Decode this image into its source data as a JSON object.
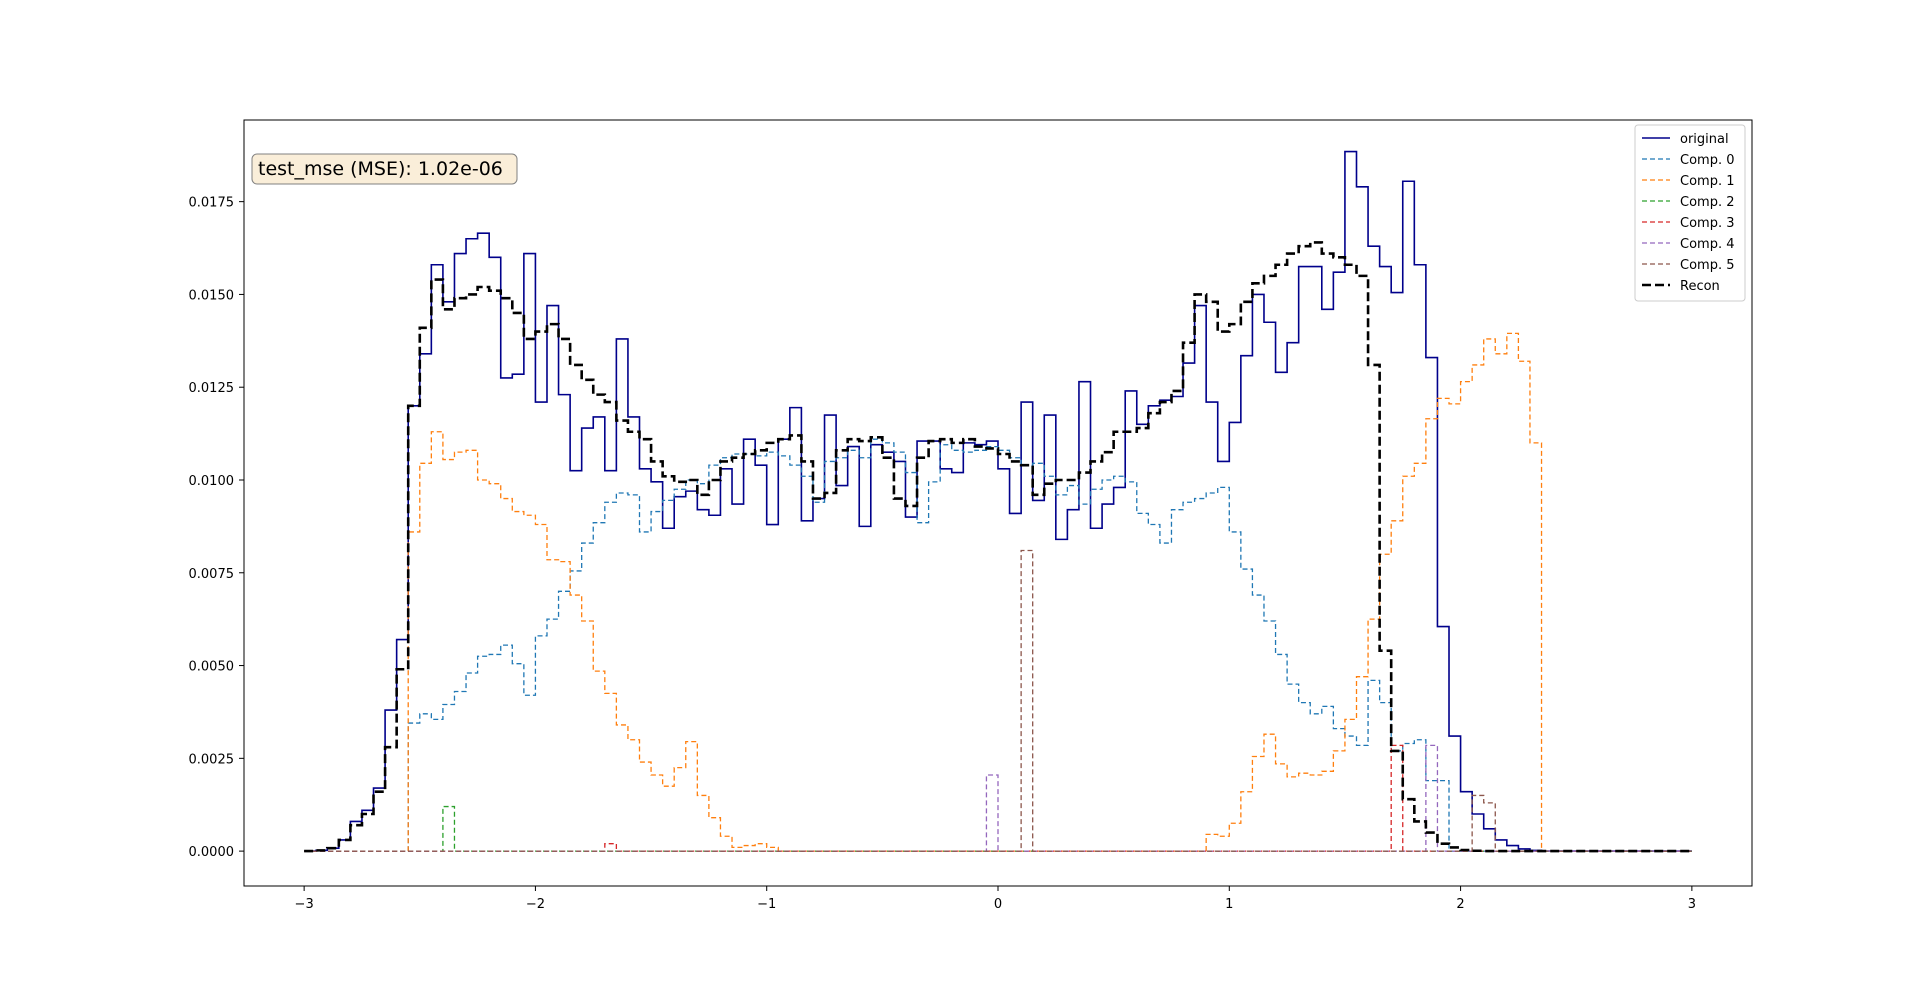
{
  "chart_data": {
    "type": "line",
    "annotation": "test_mse (MSE): 1.02e-06",
    "xlim": [
      -3.26,
      3.26
    ],
    "ylim": [
      -0.00094,
      0.0197
    ],
    "xticks": [
      -3,
      -2,
      -1,
      0,
      1,
      2,
      3
    ],
    "xtick_labels": [
      "−3",
      "−2",
      "−1",
      "0",
      "1",
      "2",
      "3"
    ],
    "yticks": [
      0,
      0.0025,
      0.005,
      0.0075,
      0.01,
      0.0125,
      0.015,
      0.0175
    ],
    "ytick_labels": [
      "0.0000",
      "0.0025",
      "0.0050",
      "0.0075",
      "0.0100",
      "0.0125",
      "0.0150",
      "0.0175"
    ],
    "grid": false,
    "legend_position": "top-right",
    "bin_edges": {
      "start": -3.0,
      "step": 0.05,
      "count": 121
    },
    "series": [
      {
        "name": "original",
        "color": "#00008b",
        "style": "solid",
        "values": [
          0.0,
          2e-05,
          8e-05,
          0.0003,
          0.0008,
          0.0011,
          0.0017,
          0.0038,
          0.0057,
          0.012,
          0.0134,
          0.0158,
          0.0148,
          0.0161,
          0.0165,
          0.01665,
          0.016,
          0.01275,
          0.01285,
          0.0161,
          0.0121,
          0.0147,
          0.0123,
          0.01025,
          0.0114,
          0.0117,
          0.01025,
          0.0138,
          0.0117,
          0.0103,
          0.00995,
          0.0087,
          0.00955,
          0.0097,
          0.0092,
          0.00905,
          0.0103,
          0.00935,
          0.0111,
          0.0104,
          0.0088,
          0.0111,
          0.01195,
          0.0089,
          0.0095,
          0.01175,
          0.00985,
          0.0109,
          0.00875,
          0.01095,
          0.01075,
          0.0105,
          0.009,
          0.01105,
          0.01105,
          0.0103,
          0.0102,
          0.011,
          0.01095,
          0.01105,
          0.0103,
          0.0091,
          0.0121,
          0.00945,
          0.01175,
          0.0084,
          0.0092,
          0.01265,
          0.0087,
          0.00935,
          0.0098,
          0.0124,
          0.0115,
          0.012,
          0.01215,
          0.01225,
          0.01315,
          0.0147,
          0.0121,
          0.0105,
          0.01155,
          0.01335,
          0.015,
          0.01425,
          0.0129,
          0.0137,
          0.01575,
          0.01575,
          0.0146,
          0.0156,
          0.01885,
          0.0179,
          0.0163,
          0.01575,
          0.01505,
          0.01805,
          0.0158,
          0.0133,
          0.00605,
          0.0031,
          0.0016,
          0.001,
          0.0006,
          0.0003,
          0.00015,
          6e-05,
          2e-05,
          0.0,
          0.0,
          0.0,
          0.0,
          0.0,
          0.0,
          0.0,
          0.0,
          0.0,
          0.0,
          0.0,
          0.0,
          0.0
        ]
      },
      {
        "name": "Comp. 0",
        "color": "#1f77b4",
        "style": "dashed",
        "values": [
          0,
          0,
          0,
          0,
          0,
          0,
          0,
          0,
          0,
          0.00345,
          0.0037,
          0.00355,
          0.00395,
          0.0043,
          0.0048,
          0.00525,
          0.0053,
          0.00555,
          0.00505,
          0.0042,
          0.0058,
          0.00625,
          0.007,
          0.00755,
          0.0083,
          0.00885,
          0.0094,
          0.00965,
          0.0096,
          0.0086,
          0.00915,
          0.00945,
          0.00975,
          0.01,
          0.0099,
          0.0104,
          0.0106,
          0.0107,
          0.0107,
          0.01065,
          0.01075,
          0.01065,
          0.0104,
          0.0101,
          0.0094,
          0.0105,
          0.0106,
          0.0108,
          0.0106,
          0.0111,
          0.011,
          0.01075,
          0.0102,
          0.00885,
          0.00995,
          0.01095,
          0.0108,
          0.01075,
          0.0108,
          0.0109,
          0.0108,
          0.0106,
          0.0104,
          0.01045,
          0.0101,
          0.0096,
          0.00985,
          0.00935,
          0.00975,
          0.01,
          0.0101,
          0.00995,
          0.0091,
          0.0088,
          0.0083,
          0.0092,
          0.0094,
          0.0095,
          0.00965,
          0.0098,
          0.0086,
          0.0076,
          0.0069,
          0.0062,
          0.0053,
          0.0045,
          0.004,
          0.0037,
          0.0039,
          0.0033,
          0.0031,
          0.00285,
          0.0046,
          0.004,
          0.0027,
          0.0029,
          0.003,
          0.0019,
          0.0019,
          0,
          0,
          0,
          0,
          0,
          0,
          0,
          0,
          0,
          0,
          0,
          0,
          0,
          0,
          0,
          0,
          0,
          0,
          0,
          0,
          0
        ]
      },
      {
        "name": "Comp. 1",
        "color": "#ff7f0e",
        "style": "dashed",
        "values": [
          0,
          0,
          0,
          0,
          0,
          0,
          0,
          0,
          0,
          0.0086,
          0.01045,
          0.0113,
          0.01055,
          0.01075,
          0.0108,
          0.01,
          0.0099,
          0.0095,
          0.00915,
          0.00905,
          0.0088,
          0.00785,
          0.0078,
          0.0069,
          0.0062,
          0.00485,
          0.00425,
          0.0034,
          0.003,
          0.0024,
          0.00205,
          0.00175,
          0.00225,
          0.00295,
          0.0015,
          0.0009,
          0.0004,
          0.0001,
          0.00015,
          0.0002,
          0.0001,
          0,
          0,
          0,
          0,
          0,
          0,
          0,
          0,
          0,
          0,
          0,
          0,
          0,
          0,
          0,
          0,
          0,
          0,
          0,
          0,
          0,
          0,
          0,
          0,
          0,
          0,
          0,
          0,
          0,
          0,
          0,
          0,
          0,
          0,
          0,
          0,
          0,
          0.00045,
          0.0004,
          0.00075,
          0.0016,
          0.00255,
          0.00315,
          0.00235,
          0.002,
          0.0021,
          0.00205,
          0.00215,
          0.0027,
          0.00355,
          0.0047,
          0.00625,
          0.008,
          0.0089,
          0.0101,
          0.01045,
          0.01165,
          0.0122,
          0.01205,
          0.01265,
          0.0131,
          0.0138,
          0.0134,
          0.01395,
          0.0132,
          0.011,
          0,
          0,
          0,
          0,
          0,
          0,
          0,
          0,
          0,
          0,
          0,
          0,
          0,
          0,
          0,
          0,
          0,
          0,
          0,
          0
        ]
      },
      {
        "name": "Comp. 2",
        "color": "#2ca02c",
        "style": "dashed",
        "values": [
          0,
          0,
          0,
          0,
          0,
          0,
          0,
          0,
          0,
          0,
          0,
          0,
          0.0012,
          0,
          0,
          0,
          0,
          0,
          0,
          0,
          0,
          0,
          0,
          0,
          0,
          0,
          0,
          0,
          0,
          0,
          0,
          0,
          0,
          0,
          0,
          0,
          0,
          0,
          0,
          0,
          0,
          0,
          0,
          0,
          0,
          0,
          0,
          0,
          0,
          0,
          0,
          0,
          0,
          0,
          0,
          0,
          0,
          0,
          0,
          0,
          0,
          0,
          0,
          0,
          0,
          0,
          0,
          0,
          0,
          0,
          0,
          0,
          0,
          0,
          0,
          0,
          0,
          0,
          0,
          0,
          0,
          0,
          0,
          0,
          0,
          0,
          0,
          0,
          0,
          0,
          0,
          0,
          0,
          0,
          0,
          0,
          0,
          0,
          0,
          0,
          0,
          0,
          0,
          0,
          0,
          0,
          0,
          0,
          0,
          0,
          0,
          0,
          0,
          0,
          0,
          0,
          0,
          0,
          0,
          0
        ]
      },
      {
        "name": "Comp. 3",
        "color": "#d62728",
        "style": "dashed",
        "values": [
          0,
          0,
          0,
          0,
          0,
          0,
          0,
          0,
          0,
          0,
          0,
          0,
          0,
          0,
          0,
          0,
          0,
          0,
          0,
          0,
          0,
          0,
          0,
          0,
          0,
          0,
          0.0002,
          0,
          0,
          0,
          0,
          0,
          0,
          0,
          0,
          0,
          0,
          0,
          0,
          0,
          0,
          0,
          0,
          0,
          0,
          0,
          0,
          0,
          0,
          0,
          0,
          0,
          0,
          0,
          0,
          0,
          0,
          0,
          0,
          0,
          0,
          0,
          0,
          0,
          0,
          0,
          0,
          0,
          0,
          0,
          0,
          0,
          0,
          0,
          0,
          0,
          0,
          0,
          0,
          0,
          0,
          0,
          0,
          0,
          0,
          0,
          0,
          0,
          0,
          0,
          0,
          0,
          0,
          0,
          0.00285,
          0,
          0,
          0,
          0,
          0,
          0,
          0,
          0,
          0,
          0,
          0,
          0,
          0,
          0,
          0,
          0,
          0,
          0,
          0,
          0,
          0,
          0,
          0,
          0,
          0,
          0
        ]
      },
      {
        "name": "Comp. 4",
        "color": "#9467bd",
        "style": "dashed",
        "values": [
          0,
          0,
          0,
          0,
          0,
          0,
          0,
          0,
          0,
          0,
          0,
          0,
          0,
          0,
          0,
          0,
          0,
          0,
          0,
          0,
          0,
          0,
          0,
          0,
          0,
          0,
          0,
          0,
          0,
          0,
          0,
          0,
          0,
          0,
          0,
          0,
          0,
          0,
          0,
          0,
          0,
          0,
          0,
          0,
          0,
          0,
          0,
          0,
          0,
          0,
          0,
          0,
          0,
          0,
          0,
          0,
          0,
          0,
          0,
          0.00205,
          0,
          0,
          0,
          0,
          0,
          0,
          0,
          0,
          0,
          0,
          0,
          0,
          0,
          0,
          0,
          0,
          0,
          0,
          0,
          0,
          0,
          0,
          0,
          0,
          0,
          0,
          0,
          0,
          0,
          0,
          0,
          0,
          0,
          0,
          0,
          0,
          0,
          0.00285,
          0,
          0,
          0,
          0,
          0,
          0,
          0,
          0,
          0,
          0,
          0,
          0,
          0,
          0,
          0,
          0,
          0,
          0,
          0,
          0,
          0,
          0
        ]
      },
      {
        "name": "Comp. 5",
        "color": "#8c564b",
        "style": "dashed",
        "values": [
          0,
          0,
          0,
          0,
          0,
          0,
          0,
          0,
          0,
          0,
          0,
          0,
          0,
          0,
          0,
          0,
          0,
          0,
          0,
          0,
          0,
          0,
          0,
          0,
          0,
          0,
          0,
          0,
          0,
          0,
          0,
          0,
          0,
          0,
          0,
          0,
          0,
          0,
          0,
          0,
          0,
          0,
          0,
          0,
          0,
          0,
          0,
          0,
          0,
          0,
          0,
          0,
          0,
          0,
          0,
          0,
          0,
          0,
          0,
          0,
          0,
          0,
          0.0081,
          0,
          0,
          0,
          0,
          0,
          0,
          0,
          0,
          0,
          0,
          0,
          0,
          0,
          0,
          0,
          0,
          0,
          0,
          0,
          0,
          0,
          0,
          0,
          0,
          0,
          0,
          0,
          0,
          0,
          0,
          0,
          0,
          0,
          0,
          0,
          0,
          0,
          0,
          0.0015,
          0.0013,
          0,
          0,
          0,
          0,
          0,
          0,
          0,
          0,
          0,
          0,
          0,
          0,
          0,
          0,
          0,
          0,
          0,
          0,
          0,
          0
        ]
      },
      {
        "name": "Recon",
        "color": "#000000",
        "style": "dashed-bold",
        "values": [
          0.0,
          2e-05,
          8e-05,
          0.0003,
          0.0007,
          0.001,
          0.0016,
          0.0028,
          0.0049,
          0.012,
          0.0141,
          0.0154,
          0.0146,
          0.0149,
          0.015,
          0.0152,
          0.0151,
          0.0149,
          0.0145,
          0.0138,
          0.014,
          0.0142,
          0.0138,
          0.0131,
          0.0127,
          0.0123,
          0.0121,
          0.0116,
          0.0113,
          0.0111,
          0.0105,
          0.0101,
          0.00995,
          0.01,
          0.0096,
          0.01,
          0.0105,
          0.0106,
          0.0107,
          0.0108,
          0.011,
          0.0111,
          0.0112,
          0.0105,
          0.0095,
          0.00965,
          0.0108,
          0.0111,
          0.01105,
          0.01115,
          0.0106,
          0.0095,
          0.0093,
          0.0106,
          0.01105,
          0.0111,
          0.011,
          0.0111,
          0.0109,
          0.01085,
          0.0107,
          0.0105,
          0.0104,
          0.0096,
          0.0099,
          0.01,
          0.01,
          0.0102,
          0.0105,
          0.01075,
          0.0113,
          0.0113,
          0.0114,
          0.0118,
          0.0121,
          0.0124,
          0.0137,
          0.015,
          0.0148,
          0.014,
          0.0142,
          0.0148,
          0.0153,
          0.0155,
          0.0158,
          0.0161,
          0.0163,
          0.0164,
          0.0161,
          0.016,
          0.0158,
          0.0155,
          0.0131,
          0.0054,
          0.0027,
          0.0014,
          0.0008,
          0.0005,
          0.0002,
          0.0001,
          3e-05,
          1e-05,
          0.0,
          0.0,
          0.0,
          0.0,
          0.0,
          0.0,
          0.0,
          0.0,
          0.0,
          0.0,
          0.0,
          0.0,
          0.0,
          0.0,
          0.0,
          0.0,
          0.0,
          0.0
        ]
      }
    ]
  }
}
